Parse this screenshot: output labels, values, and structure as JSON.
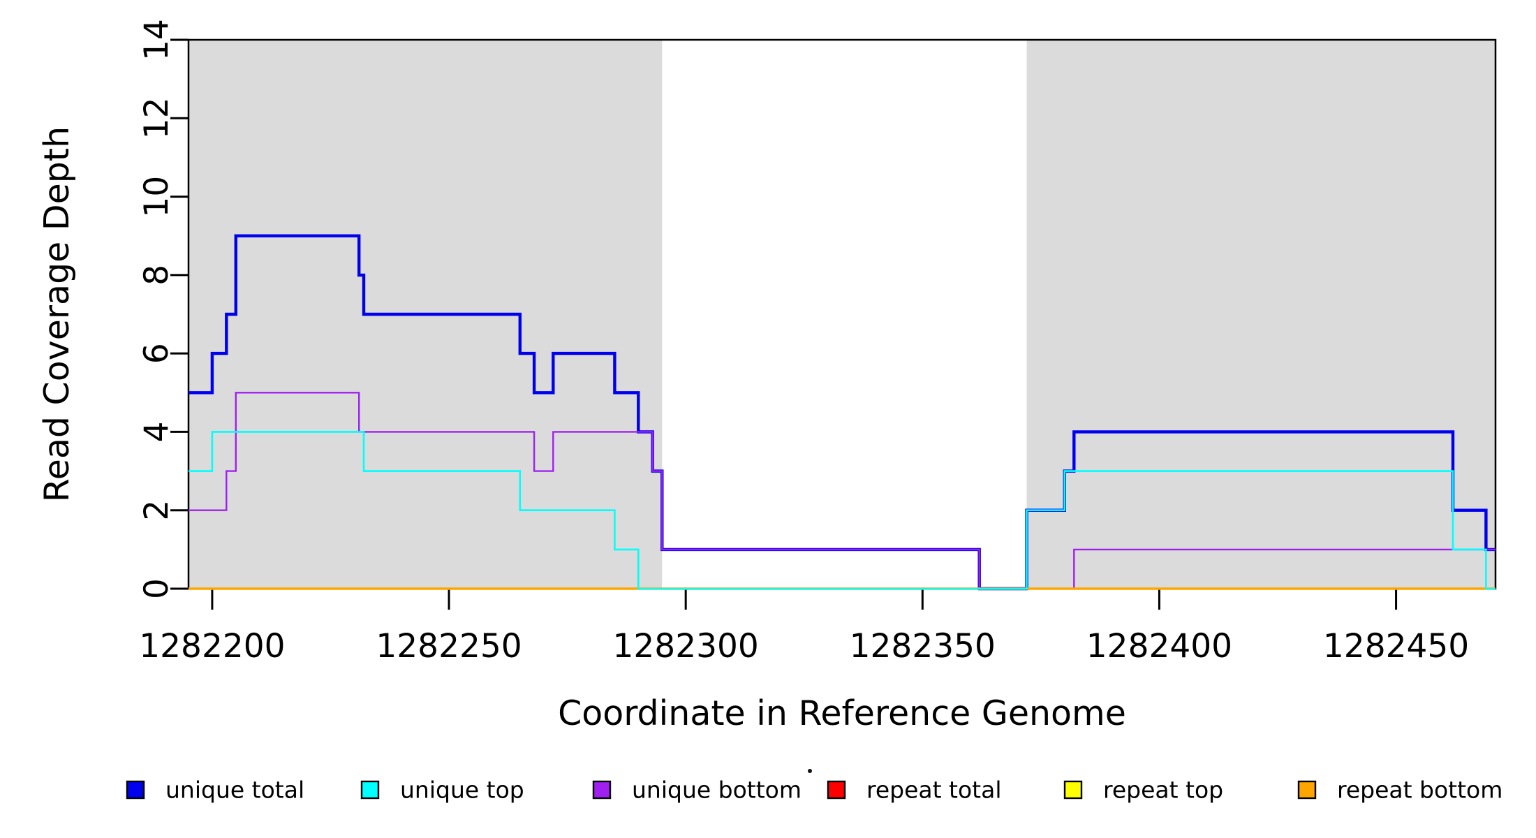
{
  "page": {
    "background": "#ffffff"
  },
  "chart_data": {
    "type": "line",
    "subtype": "step",
    "title": "",
    "xlabel": "Coordinate in Reference Genome",
    "ylabel": "Read Coverage Depth",
    "xlim": [
      1282195,
      1282471
    ],
    "ylim": [
      0,
      14
    ],
    "grid": "off",
    "x_ticks": [
      {
        "value": 1282200,
        "label": "1282200"
      },
      {
        "value": 1282250,
        "label": "1282250"
      },
      {
        "value": 1282300,
        "label": "1282300"
      },
      {
        "value": 1282350,
        "label": "1282350"
      },
      {
        "value": 1282400,
        "label": "1282400"
      },
      {
        "value": 1282450,
        "label": "1282450"
      }
    ],
    "y_ticks": [
      {
        "value": 0,
        "label": "0"
      },
      {
        "value": 2,
        "label": "2"
      },
      {
        "value": 4,
        "label": "4"
      },
      {
        "value": 6,
        "label": "6"
      },
      {
        "value": 8,
        "label": "8"
      },
      {
        "value": 10,
        "label": "10"
      },
      {
        "value": 12,
        "label": "12"
      },
      {
        "value": 14,
        "label": "14"
      }
    ],
    "shaded_regions": [
      {
        "name": "repeat-region-left",
        "x0": 1282195,
        "x1": 1282295,
        "color": "#dbdbdb"
      },
      {
        "name": "repeat-region-right",
        "x0": 1282372,
        "x1": 1282471,
        "color": "#dbdbdb"
      }
    ],
    "series": [
      {
        "name": "unique total",
        "color": "#0000ee",
        "line_width": 4.4,
        "x_end": 1282471,
        "steps": [
          [
            1282195,
            5
          ],
          [
            1282200,
            6
          ],
          [
            1282203,
            7
          ],
          [
            1282205,
            9
          ],
          [
            1282231,
            8
          ],
          [
            1282232,
            7
          ],
          [
            1282265,
            6
          ],
          [
            1282268,
            5
          ],
          [
            1282272,
            6
          ],
          [
            1282285,
            5
          ],
          [
            1282290,
            4
          ],
          [
            1282293,
            3
          ],
          [
            1282295,
            1
          ],
          [
            1282362,
            0
          ],
          [
            1282372,
            2
          ],
          [
            1282380,
            3
          ],
          [
            1282382,
            4
          ],
          [
            1282462,
            2
          ],
          [
            1282469,
            1
          ]
        ]
      },
      {
        "name": "unique top",
        "color": "#00ffff",
        "line_width": 2.6,
        "x_end": 1282471,
        "steps": [
          [
            1282195,
            3
          ],
          [
            1282200,
            4
          ],
          [
            1282232,
            3
          ],
          [
            1282265,
            2
          ],
          [
            1282285,
            1
          ],
          [
            1282290,
            0
          ],
          [
            1282372,
            2
          ],
          [
            1282380,
            3
          ],
          [
            1282462,
            1
          ],
          [
            1282469,
            0
          ]
        ]
      },
      {
        "name": "unique bottom",
        "color": "#a020f0",
        "line_width": 2.4,
        "x_end": 1282471,
        "steps": [
          [
            1282195,
            2
          ],
          [
            1282203,
            3
          ],
          [
            1282205,
            5
          ],
          [
            1282231,
            4
          ],
          [
            1282268,
            3
          ],
          [
            1282272,
            4
          ],
          [
            1282293,
            3
          ],
          [
            1282295,
            1
          ],
          [
            1282362,
            0
          ],
          [
            1282382,
            1
          ]
        ]
      },
      {
        "name": "repeat total",
        "color": "#ff0000",
        "line_width": 2.4,
        "x_end": 1282471,
        "steps": [
          [
            1282195,
            0
          ]
        ]
      },
      {
        "name": "repeat top",
        "color": "#ffff00",
        "line_width": 2.4,
        "x_end": 1282471,
        "steps": [
          [
            1282195,
            0
          ]
        ]
      },
      {
        "name": "repeat bottom",
        "color": "#ffa500",
        "line_width": 3.4,
        "x_end": 1282471,
        "steps": [
          [
            1282195,
            0
          ]
        ]
      }
    ],
    "draw_order": [
      0,
      2,
      3,
      4,
      5,
      1
    ],
    "legend": {
      "position": "bottom",
      "entries": [
        {
          "label": "unique total",
          "color": "#0000ee"
        },
        {
          "label": "unique top",
          "color": "#00ffff"
        },
        {
          "label": "unique bottom",
          "color": "#a020f0"
        },
        {
          "label": "repeat total",
          "color": "#ff0000"
        },
        {
          "label": "repeat top",
          "color": "#ffff00"
        },
        {
          "label": "repeat bottom",
          "color": "#ffa500"
        }
      ]
    }
  }
}
